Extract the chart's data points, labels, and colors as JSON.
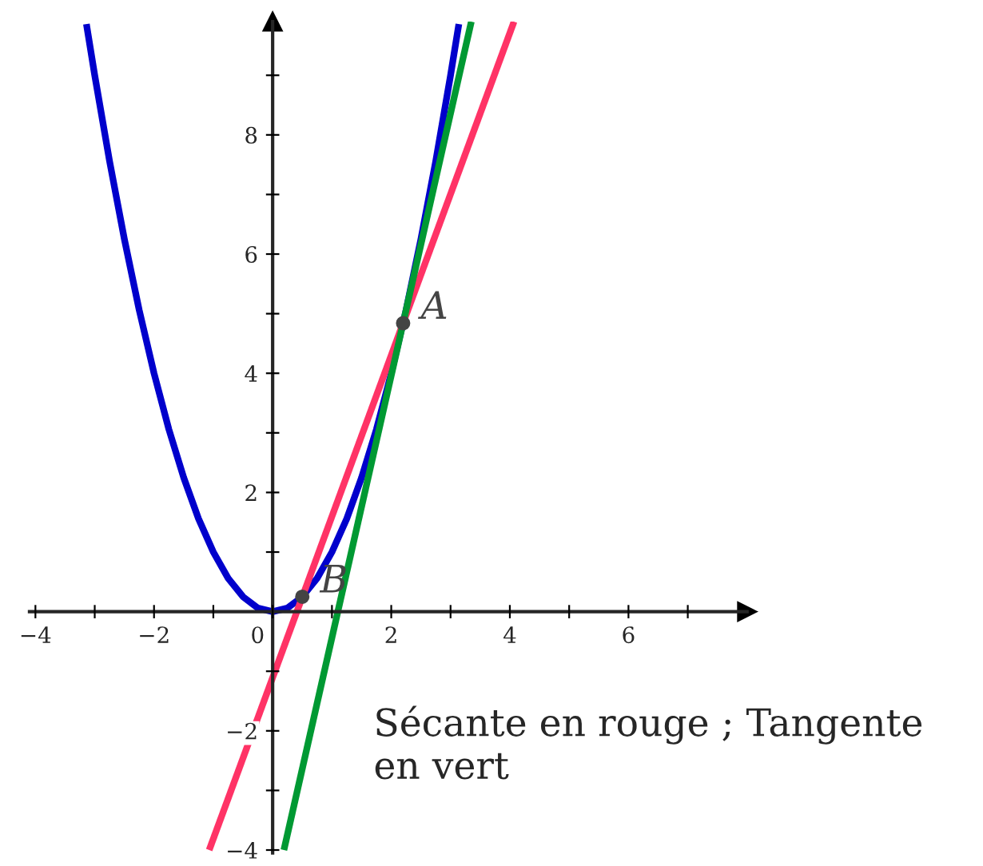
{
  "chart_data": {
    "type": "line",
    "xlim": [
      -4.1,
      8
    ],
    "ylim": [
      -4.05,
      9.9
    ],
    "xticks": [
      {
        "value": -4,
        "label": "−4"
      },
      {
        "value": -3,
        "label": null
      },
      {
        "value": -2,
        "label": "−2"
      },
      {
        "value": -1,
        "label": null
      },
      {
        "value": 0,
        "label": "0"
      },
      {
        "value": 1,
        "label": null
      },
      2,
      {
        "value": 3,
        "label": null
      },
      4,
      {
        "value": 5,
        "label": null
      },
      6,
      {
        "value": 7,
        "label": null
      }
    ],
    "yticks": [
      {
        "value": -4,
        "label": "−4"
      },
      {
        "value": -3,
        "label": null
      },
      {
        "value": -2,
        "label": "−2"
      },
      {
        "value": -1,
        "label": null
      },
      {
        "value": 1,
        "label": null
      },
      2,
      {
        "value": 3,
        "label": null
      },
      4,
      {
        "value": 5,
        "label": null
      },
      6,
      {
        "value": 7,
        "label": null
      },
      8,
      {
        "value": 9,
        "label": null
      }
    ],
    "grid": false,
    "legend": false,
    "marker": "none",
    "line_style": "solid",
    "series": [
      {
        "color": "#0000cc",
        "x": [
          -3.14,
          -3,
          -2.75,
          -2.5,
          -2.25,
          -2,
          -1.75,
          -1.5,
          -1.25,
          -1,
          -0.75,
          -0.5,
          -0.25,
          0,
          0.25,
          0.5,
          0.75,
          1,
          1.25,
          1.5,
          1.75,
          2,
          2.25,
          2.5,
          2.75,
          3,
          3.14
        ],
        "values": [
          9.86,
          9,
          7.56,
          6.25,
          5.06,
          4,
          3.06,
          2.25,
          1.56,
          1,
          0.56,
          0.25,
          0.06,
          0,
          0.06,
          0.25,
          0.56,
          1,
          1.56,
          2.25,
          3.06,
          4,
          5.06,
          6.25,
          7.56,
          9,
          9.86
        ]
      },
      {
        "color": "#ff3366",
        "x": [
          -1.07,
          4.07
        ],
        "values": [
          -4,
          9.9
        ]
      },
      {
        "color": "#009933",
        "x": [
          0.19,
          3.35
        ],
        "values": [
          -4,
          9.9
        ]
      },
      {
        "type": "scatter",
        "color": "#444444",
        "marker": "circle",
        "x": [
          2.2,
          0.5
        ],
        "values": [
          4.84,
          0.25
        ]
      }
    ],
    "annotations": [
      {
        "text": "A",
        "x": 2.2,
        "y": 4.84
      },
      {
        "text": "B",
        "x": 0.5,
        "y": 0.25
      },
      "Sécante en rouge ; Tangente en vert"
    ]
  }
}
